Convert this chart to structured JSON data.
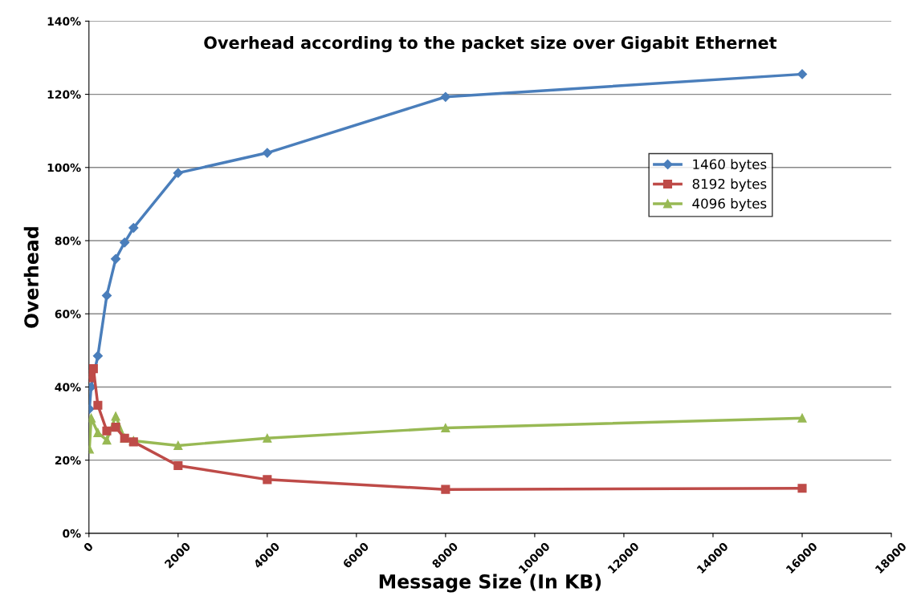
{
  "chart_data": {
    "type": "line",
    "title": "Overhead according to the packet size over Gigabit Ethernet",
    "xlabel": "Message Size (In KB)",
    "ylabel": "Overhead",
    "xlim": [
      0,
      18000
    ],
    "xticks": [
      0,
      2000,
      4000,
      6000,
      8000,
      10000,
      12000,
      14000,
      16000,
      18000
    ],
    "ylim": [
      0,
      140
    ],
    "yticks": [
      {
        "value": 0,
        "label": "0%"
      },
      {
        "value": 20,
        "label": "20%"
      },
      {
        "value": 40,
        "label": "40%"
      },
      {
        "value": 60,
        "label": "60%"
      },
      {
        "value": 80,
        "label": "80%"
      },
      {
        "value": 100,
        "label": "100%"
      },
      {
        "value": 120,
        "label": "120%"
      },
      {
        "value": 140,
        "label": "140%"
      }
    ],
    "grid": "y",
    "legend": "center right",
    "line_style": "solid",
    "series": [
      {
        "name": "1460 bytes",
        "color": "#4a7ebb",
        "marker": "diamond",
        "x": [
          10,
          50,
          200,
          400,
          600,
          800,
          1000,
          2000,
          4000,
          8000,
          16000
        ],
        "values": [
          34,
          40,
          48.5,
          65,
          75,
          79.5,
          83.5,
          98.5,
          104,
          119.3,
          125.5
        ]
      },
      {
        "name": "8192 bytes",
        "color": "#be4b48",
        "marker": "square",
        "x": [
          10,
          50,
          100,
          200,
          400,
          600,
          800,
          1000,
          2000,
          4000,
          8000,
          16000
        ],
        "values": [
          42.5,
          43.5,
          45,
          35,
          28,
          29,
          26,
          25,
          18.5,
          14.7,
          12,
          12.3
        ]
      },
      {
        "name": "4096 bytes",
        "color": "#98b954",
        "marker": "triangle",
        "x": [
          10,
          50,
          200,
          400,
          600,
          800,
          1000,
          2000,
          4000,
          8000,
          16000
        ],
        "values": [
          23,
          31.5,
          27.5,
          25.5,
          32,
          26,
          25.3,
          24,
          26,
          28.8,
          31.5
        ]
      }
    ]
  }
}
